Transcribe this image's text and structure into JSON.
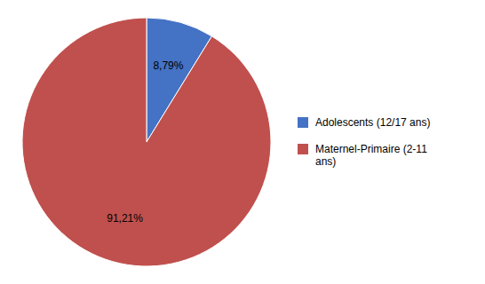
{
  "chart_data": {
    "type": "pie",
    "categories": [
      "Adolescents (12/17 ans)",
      "Maternel-Primaire (2-11\nans)"
    ],
    "values": [
      8.79,
      91.21
    ],
    "value_labels": [
      "8,79%",
      "91,21%"
    ],
    "colors": [
      "#4472C4",
      "#C0504D"
    ],
    "data_labels": true,
    "legend": "right"
  }
}
